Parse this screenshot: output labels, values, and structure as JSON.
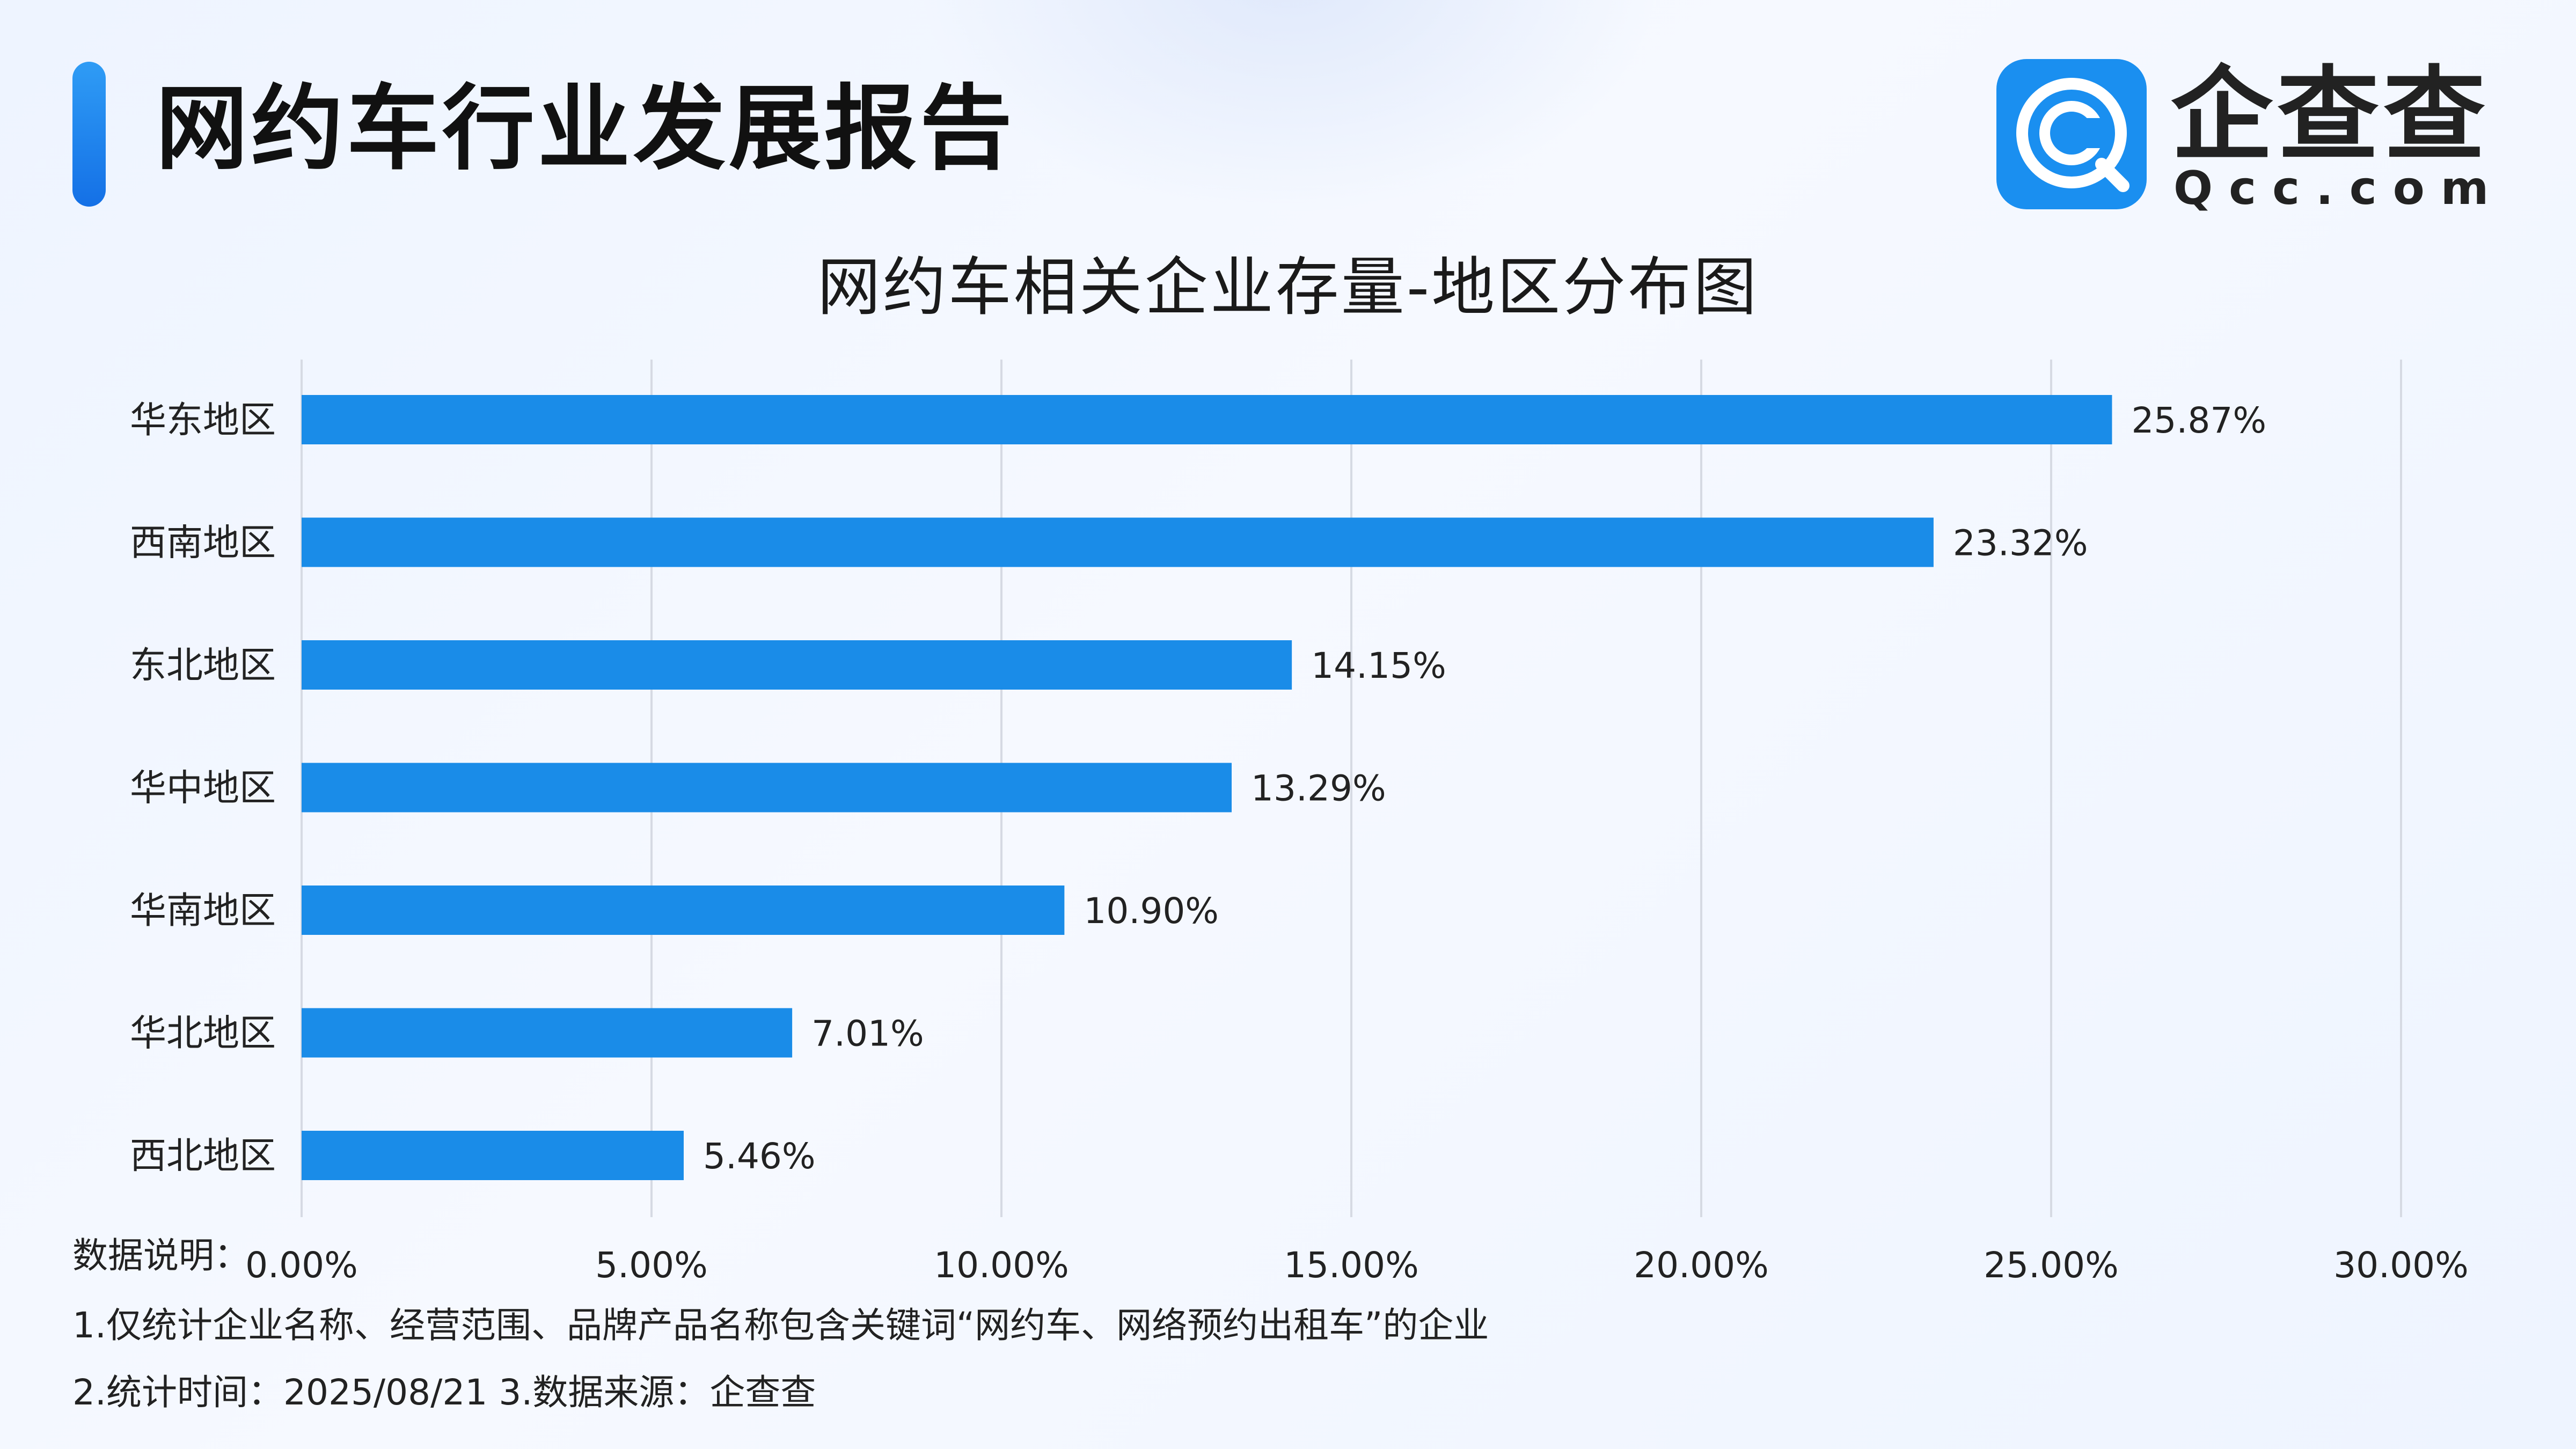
{
  "header": {
    "title": "网约车行业发展报告",
    "logo_text": "企查查",
    "logo_sub": "Qcc.com"
  },
  "colors": {
    "accent": "#1a8ff0",
    "bar": "#1a8ce8",
    "grid": "#d6dae3",
    "text": "#222222"
  },
  "chart_data": {
    "type": "bar",
    "orientation": "horizontal",
    "title": "网约车相关企业存量-地区分布图",
    "categories": [
      "华东地区",
      "西南地区",
      "东北地区",
      "华中地区",
      "华南地区",
      "华北地区",
      "西北地区"
    ],
    "values": [
      25.87,
      23.32,
      14.15,
      13.29,
      10.9,
      7.01,
      5.46
    ],
    "value_labels": [
      "25.87%",
      "23.32%",
      "14.15%",
      "13.29%",
      "10.90%",
      "7.01%",
      "5.46%"
    ],
    "xlim": [
      0,
      30
    ],
    "x_ticks": [
      0,
      5,
      10,
      15,
      20,
      25,
      30
    ],
    "x_tick_labels": [
      "0.00%",
      "5.00%",
      "10.00%",
      "15.00%",
      "20.00%",
      "25.00%",
      "30.00%"
    ],
    "grid": "vertical",
    "legend": "none"
  },
  "footnotes": {
    "title": "数据说明：",
    "line1": "1.仅统计企业名称、经营范围、品牌产品名称包含关键词“网约车、网络预约出租车”的企业",
    "line2": "2.统计时间：2025/08/21    3.数据来源：企查查"
  }
}
